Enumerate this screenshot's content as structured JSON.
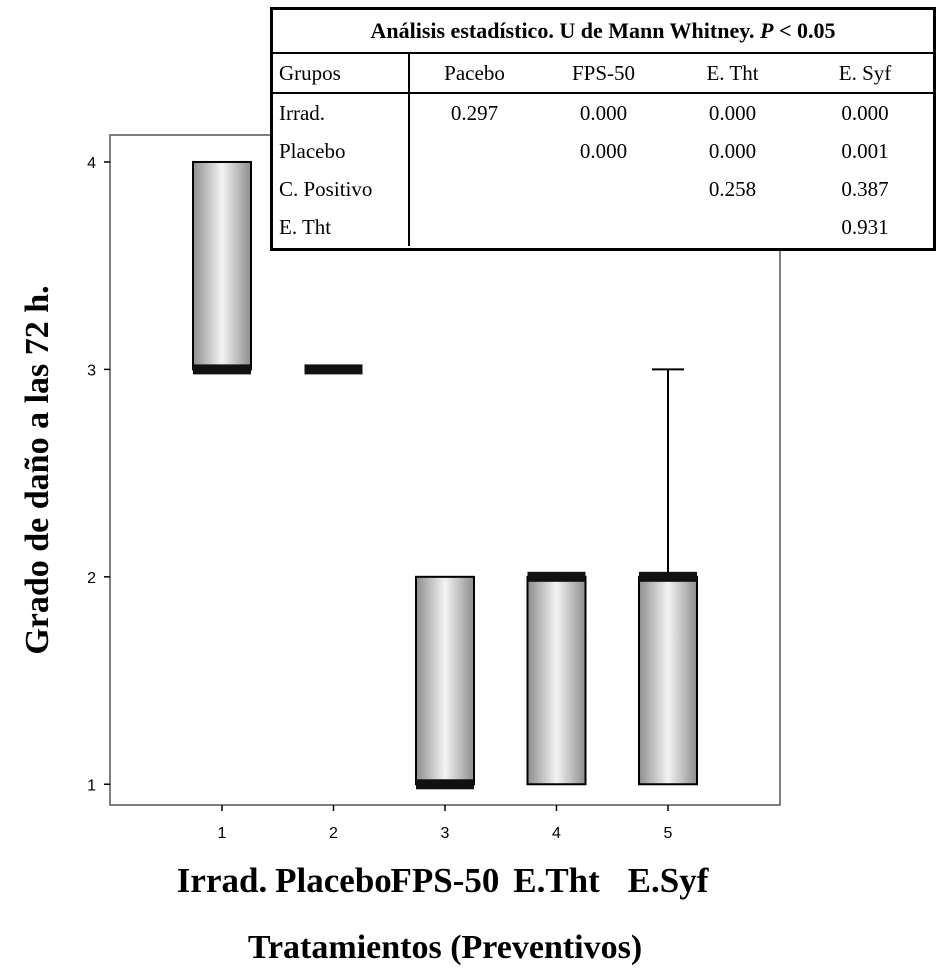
{
  "chart_data": {
    "type": "boxplot",
    "xlabel": "Tratamientos (Preventivos)",
    "ylabel": "Grado de daño a las 72 h.",
    "ylim": [
      0.9,
      4.13
    ],
    "yticks": [
      1,
      2,
      3,
      4
    ],
    "xticks": [
      1,
      2,
      3,
      4,
      5
    ],
    "categories": [
      "Irrad.",
      "Placebo",
      "FPS-50",
      "E.Tht",
      "E.Syf"
    ],
    "boxes": [
      {
        "position": 1,
        "q1": 3,
        "median": 3,
        "q3": 4,
        "whisker_low": 3,
        "whisker_high": 4
      },
      {
        "position": 2,
        "q1": 3,
        "median": 3,
        "q3": 3,
        "whisker_low": 3,
        "whisker_high": 3
      },
      {
        "position": 3,
        "q1": 1,
        "median": 1,
        "q3": 2,
        "whisker_low": 1,
        "whisker_high": 2
      },
      {
        "position": 4,
        "q1": 1,
        "median": 2,
        "q3": 2,
        "whisker_low": 1,
        "whisker_high": 2
      },
      {
        "position": 5,
        "q1": 1,
        "median": 2,
        "q3": 2,
        "whisker_low": 1,
        "whisker_high": 3
      }
    ]
  },
  "stats_table": {
    "title_main": "Análisis estadístico. U de Mann Whitney.",
    "title_p": "P",
    "title_rest": "< 0.05",
    "header": [
      "Grupos",
      "Pacebo",
      "FPS-50",
      "E. Tht",
      "E. Syf"
    ],
    "rows": [
      [
        "Irrad.",
        "0.297",
        "0.000",
        "0.000",
        "0.000"
      ],
      [
        "Placebo",
        "",
        "0.000",
        "0.000",
        "0.001"
      ],
      [
        "C. Positivo",
        "",
        "",
        "0.258",
        "0.387"
      ],
      [
        "E. Tht",
        "",
        "",
        "",
        "0.931"
      ]
    ]
  },
  "colors": {
    "box_edge": "#9a9a9a",
    "box_center": "#f2f2f2",
    "median": "#111111",
    "axis": "#000000"
  }
}
